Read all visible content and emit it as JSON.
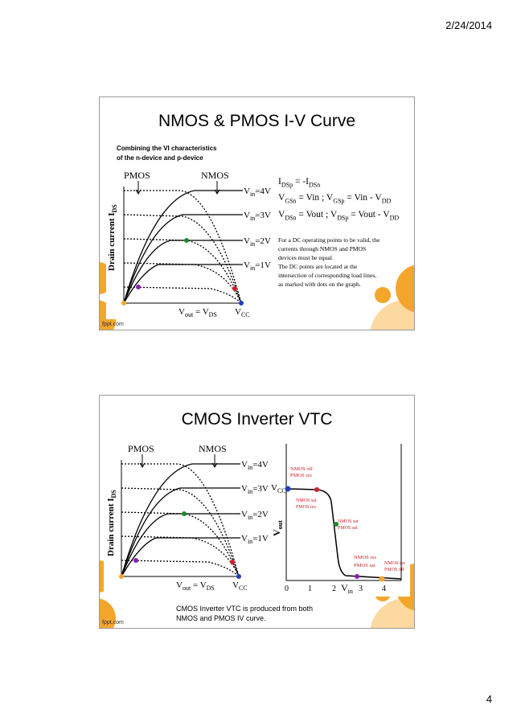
{
  "page": {
    "date": "2/24/2014",
    "number": "4"
  },
  "slide1": {
    "title": "NMOS & PMOS I-V Curve",
    "caption_line1": "Combining the VI characteristics",
    "caption_line2": "of the n-device and p-device",
    "footer": "fppt.com",
    "note": [
      "For a DC operating points to be valid, the",
      "currents through NMOS and PMOS",
      "devices must be equal.",
      "The DC points are located at the",
      "intersection of corresponding load lines,",
      "as marked with dots on the graph."
    ]
  },
  "slide2": {
    "title": "CMOS Inverter VTC",
    "footer": "fppt.com",
    "caption_line1": "CMOS Inverter VTC is produced from both",
    "caption_line2": "NMOS and PMOS IV curve.",
    "vtc": {
      "labels": {
        "nmos_off": "NMOS off",
        "pmos_res_1": "PMOS res",
        "nmos_sat_1": "NMOS sat",
        "pmos_res_2": "PMOS res",
        "nmos_sat_2": "NMOS sat",
        "pmos_sat_1": "PMOS sat",
        "nmos_res_1": "NMOS res",
        "pmos_sat_2": "PMOS sat",
        "nmos_res_2": "NMOS res",
        "pmos_off": "PMOS off"
      },
      "x_ticks": [
        "0",
        "1",
        "2",
        "3",
        "4"
      ],
      "colors": {
        "blue": "#1f3fbf",
        "red": "#d0202a",
        "green": "#1e8a2a",
        "purple": "#8a1fb0",
        "orange": "#f4a62c",
        "annotation": "#d0202a"
      }
    }
  },
  "iv_graph": {
    "pmos": "PMOS",
    "nmos": "NMOS",
    "ylabel": "Drain current I",
    "ylabel_sub": "DS",
    "vin4": "=4V",
    "vin3": "=3V",
    "vin2": "=2V",
    "vin1": "=1V",
    "vin_prefix": "V",
    "vin_sub": "in",
    "xlabel_pre": "V",
    "xlabel_sub1": "out",
    "xlabel_mid": " = V",
    "xlabel_sub2": "DS",
    "vcc": "V",
    "vcc_sub": "CC",
    "dot_colors": {
      "orange": "#f4a62c",
      "purple": "#8a1fb0",
      "green": "#1e8a2a",
      "red": "#d0202a",
      "blue": "#1f3fbf"
    }
  },
  "equations": {
    "line1": {
      "a": "I",
      "a_sub": "DSp",
      "b": " = -I",
      "b_sub": "DSn"
    },
    "line2": {
      "a": "V",
      "a_sub": "GSn",
      "b": " = Vin ; V",
      "b_sub": "GSp",
      "c": " = Vin - V",
      "c_sub": "DD"
    },
    "line3": {
      "a": "V",
      "a_sub": "DSn",
      "b": " = Vout ; V",
      "b_sub": "DSp",
      "c": " = Vout - V",
      "c_sub": "DD"
    }
  },
  "vtc_axes": {
    "y_main": "V",
    "y_sub": "out",
    "ycc": "V",
    "ycc_sub": "CC",
    "x_main": "V",
    "x_sub": "in"
  }
}
